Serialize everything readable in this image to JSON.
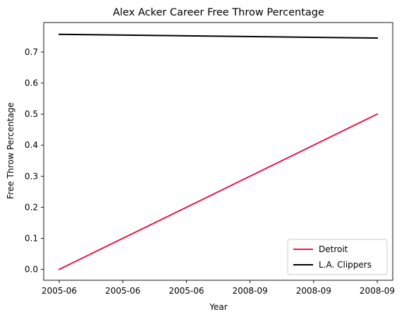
{
  "chart_data": {
    "type": "line",
    "title": "Alex Acker Career Free Throw Percentage",
    "xlabel": "Year",
    "ylabel": "Free Throw Percentage",
    "x": [
      0,
      1
    ],
    "x_tick_labels": [
      "2005-06",
      "2005-06",
      "2005-06",
      "2008-09",
      "2008-09",
      "2008-09"
    ],
    "ylim": [
      -0.035,
      0.795
    ],
    "y_ticks": [
      0.0,
      0.1,
      0.2,
      0.3,
      0.4,
      0.5,
      0.6,
      0.7
    ],
    "y_tick_labels": [
      "0.0",
      "0.1",
      "0.2",
      "0.3",
      "0.4",
      "0.5",
      "0.6",
      "0.7"
    ],
    "grid": false,
    "legend_position": "lower-right",
    "series": [
      {
        "name": "Detroit",
        "color": "#e8194b",
        "values": [
          0.0,
          0.5
        ]
      },
      {
        "name": "L.A. Clippers",
        "color": "#000000",
        "values": [
          0.757,
          0.745
        ]
      }
    ]
  }
}
